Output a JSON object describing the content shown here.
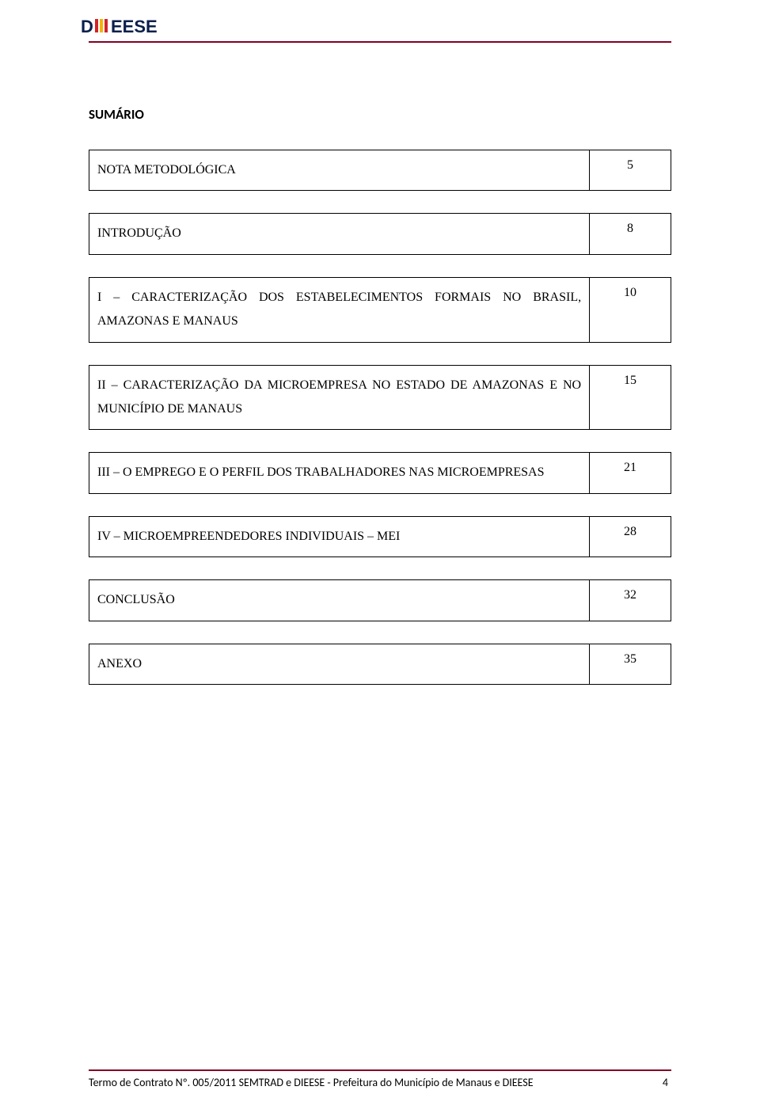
{
  "colors": {
    "rule": "#820024",
    "text": "#000000",
    "background": "#ffffff",
    "logo_navy": "#0b1f4b",
    "logo_red": "#d1232a",
    "logo_yellow": "#f4b400"
  },
  "header": {
    "logo_alt": "DIEESE"
  },
  "title": "SUMÁRIO",
  "toc": [
    {
      "label": "NOTA METODOLÓGICA",
      "page": "5",
      "row_class": "short"
    },
    {
      "label": "INTRODUÇÃO",
      "page": "8",
      "row_class": "short"
    },
    {
      "label": "I – CARACTERIZAÇÃO DOS ESTABELECIMENTOS FORMAIS NO BRASIL, AMAZONAS E MANAUS",
      "page": "10",
      "row_class": "med"
    },
    {
      "label": "II – CARACTERIZAÇÃO DA MICROEMPRESA NO ESTADO DE AMAZONAS E NO MUNICÍPIO DE MANAUS",
      "page": "15",
      "row_class": "med"
    },
    {
      "label": "III – O EMPREGO E O PERFIL DOS TRABALHADORES NAS MICROEMPRESAS",
      "page": "21",
      "row_class": "short"
    },
    {
      "label": "IV – MICROEMPREENDEDORES INDIVIDUAIS – MEI",
      "page": "28",
      "row_class": "short"
    },
    {
      "label": "CONCLUSÃO",
      "page": "32",
      "row_class": "short"
    },
    {
      "label": "ANEXO",
      "page": "35",
      "row_class": "tall"
    }
  ],
  "footer": {
    "text": "Termo de Contrato Nº. 005/2011 SEMTRAD e DIEESE - Prefeitura do Município de Manaus e DIEESE",
    "page_number": "4"
  }
}
